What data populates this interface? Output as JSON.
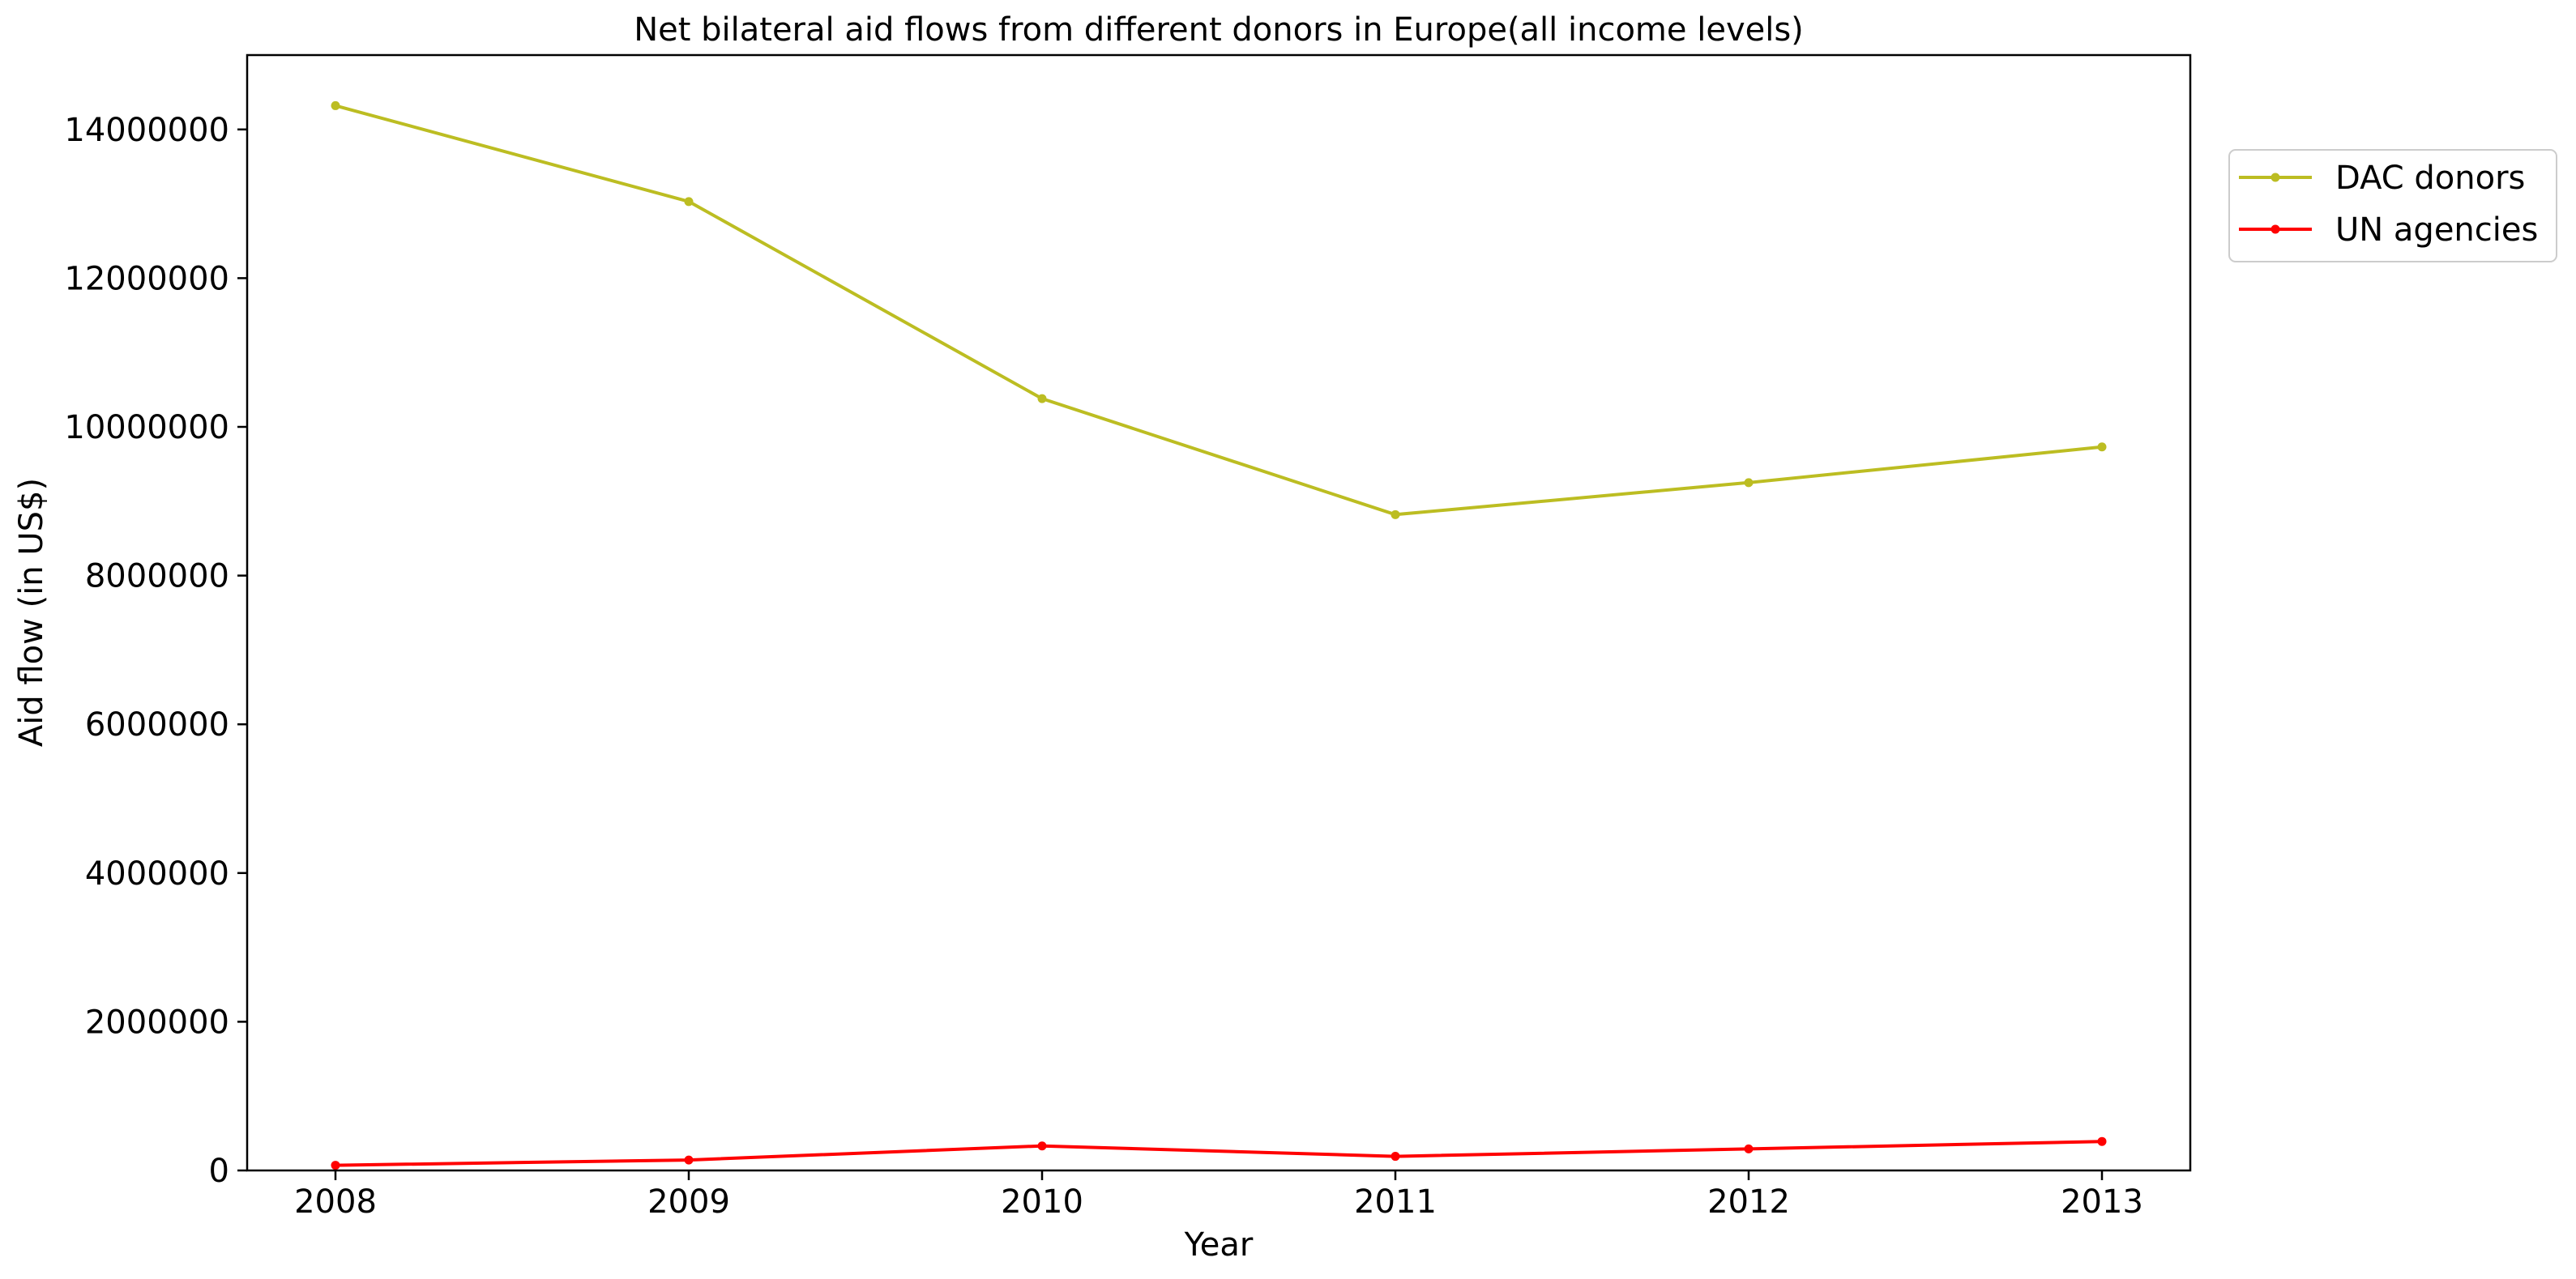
{
  "chart_data": {
    "type": "line",
    "title": "Net bilateral aid flows from different donors in Europe(all income levels)",
    "xlabel": "Year",
    "ylabel": "Aid flow (in US$)",
    "x": [
      "2008",
      "2009",
      "2010",
      "2011",
      "2012",
      "2013"
    ],
    "xlim": [
      2007.75,
      2013.25
    ],
    "ylim": [
      0,
      15000000
    ],
    "yticks": [
      0,
      2000000,
      4000000,
      6000000,
      8000000,
      10000000,
      12000000,
      14000000
    ],
    "ytick_labels": [
      "0",
      "2000000",
      "4000000",
      "6000000",
      "8000000",
      "10000000",
      "12000000",
      "14000000"
    ],
    "grid": false,
    "legend_position": "outside-top-right",
    "series": [
      {
        "name": "DAC donors",
        "color": "#bcbd22",
        "values": [
          14320000,
          13030000,
          10380000,
          8820000,
          9250000,
          9730000
        ]
      },
      {
        "name": "UN agencies",
        "color": "#ff0000",
        "values": [
          70000,
          140000,
          330000,
          190000,
          290000,
          390000
        ]
      }
    ]
  }
}
